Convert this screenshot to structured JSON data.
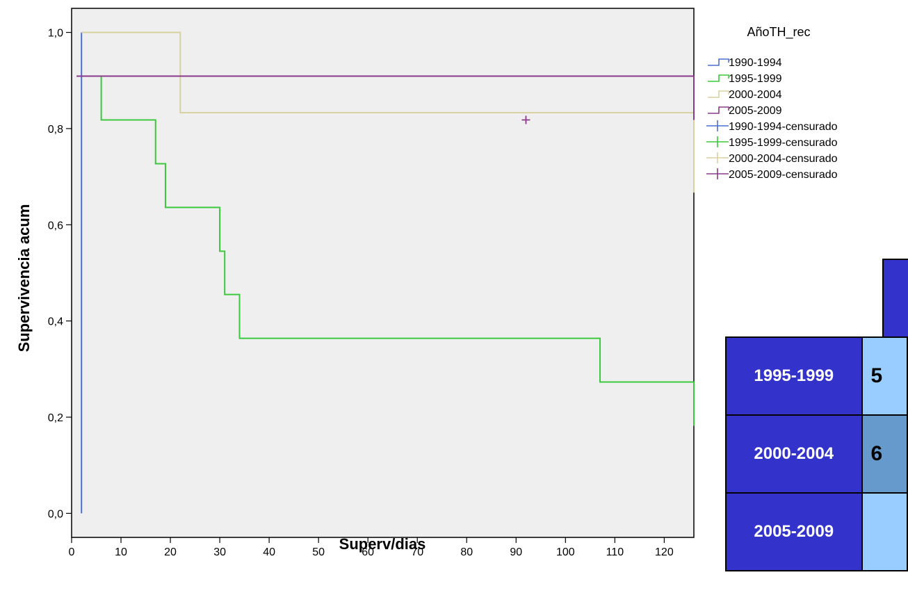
{
  "chart_data": {
    "type": "line",
    "step": true,
    "xlabel": "Superv/dias",
    "ylabel": "Supervivencia acum",
    "xlim": [
      0,
      126
    ],
    "ylim": [
      -0.05,
      1.05
    ],
    "x_ticks": [
      0,
      10,
      20,
      30,
      40,
      50,
      60,
      70,
      80,
      90,
      100,
      110,
      120
    ],
    "x_tick_labels": [
      "0",
      "10",
      "20",
      "30",
      "40",
      "50",
      "60",
      "70",
      "80",
      "90",
      "100",
      "110",
      "120"
    ],
    "y_ticks": [
      0,
      0.2,
      0.4,
      0.6,
      0.8,
      1.0
    ],
    "y_tick_labels": [
      "0,0",
      "0,2",
      "0,4",
      "0,6",
      "0,8",
      "1,0"
    ],
    "legend_title": "AñoTH_rec",
    "legend_position": "top-right outside",
    "grid": false,
    "plot_background": "#efefef",
    "series": [
      {
        "name": "1990-1994",
        "color": "#4a6fd0",
        "points": [
          [
            2,
            1.0
          ],
          [
            2,
            0.0
          ]
        ],
        "censored": []
      },
      {
        "name": "1995-1999",
        "color": "#3cc83c",
        "points": [
          [
            3,
            0.909
          ],
          [
            6,
            0.818
          ],
          [
            17,
            0.727
          ],
          [
            19,
            0.636
          ],
          [
            30,
            0.545
          ],
          [
            31,
            0.455
          ],
          [
            34,
            0.364
          ],
          [
            107,
            0.273
          ],
          [
            126,
            0.182
          ]
        ],
        "censored": []
      },
      {
        "name": "2000-2004",
        "color": "#d8d0a0",
        "points": [
          [
            2,
            1.0
          ],
          [
            6,
            1.0
          ],
          [
            22,
            0.833
          ],
          [
            126,
            0.667
          ]
        ],
        "censored": []
      },
      {
        "name": "2005-2009",
        "color": "#8a3a8a",
        "points": [
          [
            1,
            0.909
          ],
          [
            83,
            0.909
          ],
          [
            126,
            0.818
          ]
        ],
        "censored": [
          [
            92,
            0.818
          ]
        ]
      }
    ],
    "legend_entries": [
      {
        "label": "1990-1994",
        "color": "#4a6fd0",
        "kind": "step"
      },
      {
        "label": "1995-1999",
        "color": "#3cc83c",
        "kind": "step"
      },
      {
        "label": "2000-2004",
        "color": "#d8d0a0",
        "kind": "step"
      },
      {
        "label": "2005-2009",
        "color": "#8a3a8a",
        "kind": "step"
      },
      {
        "label": "1990-1994-censurado",
        "color": "#4a6fd0",
        "kind": "cross"
      },
      {
        "label": "1995-1999-censurado",
        "color": "#3cc83c",
        "kind": "cross"
      },
      {
        "label": "2000-2004-censurado",
        "color": "#d8d0a0",
        "kind": "cross"
      },
      {
        "label": "2005-2009-censurado",
        "color": "#8a3a8a",
        "kind": "cross"
      }
    ]
  },
  "table": {
    "rows": [
      {
        "label": "1995-1999",
        "value": "5",
        "cell_color": "#99ccff"
      },
      {
        "label": "2000-2004",
        "value": "6",
        "cell_color": "#6699cc"
      },
      {
        "label": "2005-2009",
        "value": "",
        "cell_color": "#99ccff"
      }
    ]
  }
}
